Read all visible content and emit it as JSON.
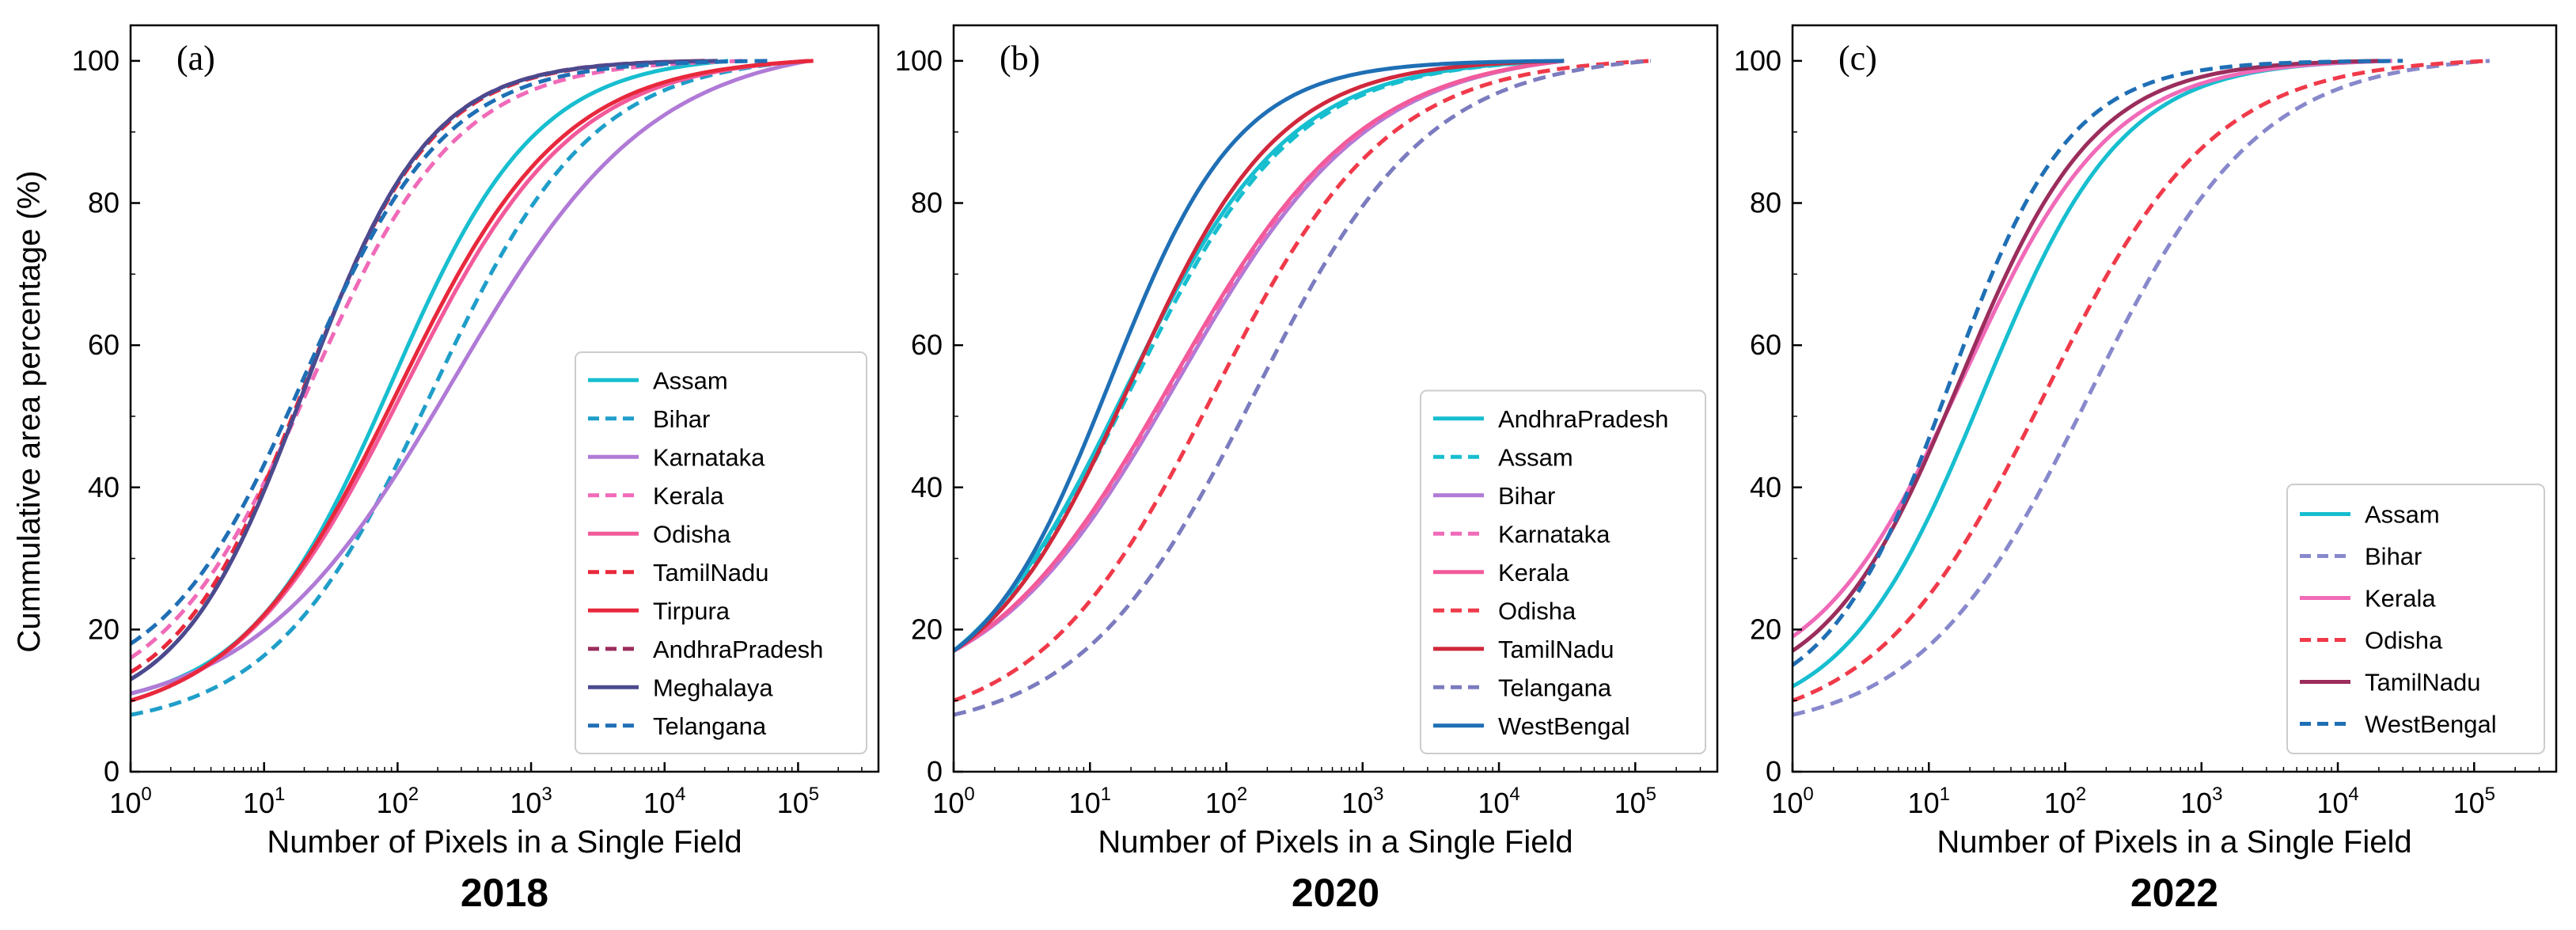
{
  "figure": {
    "ylabel": "Cummulative area percentage (%)",
    "xlabel": "Number of Pixels in a Single Field"
  },
  "chart_data": [
    {
      "type": "line",
      "panel_label": "(a)",
      "caption": "2018",
      "xlabel": "Number of Pixels in a Single Field",
      "ylabel": "Cummulative area percentage (%)",
      "x_scale": "log",
      "xlim": [
        1,
        400000
      ],
      "ylim": [
        0,
        105
      ],
      "x_ticks": [
        1,
        10,
        100,
        1000,
        10000,
        100000
      ],
      "y_ticks": [
        0,
        20,
        40,
        60,
        80,
        100
      ],
      "legend_position": "lower-right",
      "series": [
        {
          "name": "Assam",
          "color": "#17becf",
          "dash": "solid",
          "y0": 11,
          "xhalf": 90,
          "k": 0.8,
          "xmax": 30000
        },
        {
          "name": "Bihar",
          "color": "#1f9ec9",
          "dash": "dashed",
          "y0": 8,
          "xhalf": 180,
          "k": 0.72,
          "xmax": 120000
        },
        {
          "name": "Karnataka",
          "color": "#b07ad6",
          "dash": "solid",
          "y0": 11,
          "xhalf": 260,
          "k": 0.58,
          "xmax": 120000
        },
        {
          "name": "Kerala",
          "color": "#f06ab8",
          "dash": "dashed",
          "y0": 16,
          "xhalf": 22,
          "k": 0.78,
          "xmax": 40000
        },
        {
          "name": "Odisha",
          "color": "#f25a9a",
          "dash": "solid",
          "y0": 10,
          "xhalf": 110,
          "k": 0.68,
          "xmax": 120000
        },
        {
          "name": "TamilNadu",
          "color": "#e8283c",
          "dash": "dashed",
          "y0": 14,
          "xhalf": 20,
          "k": 0.9,
          "xmax": 20000
        },
        {
          "name": "Tirpura",
          "color": "#e8283c",
          "dash": "solid",
          "y0": 10,
          "xhalf": 100,
          "k": 0.7,
          "xmax": 130000
        },
        {
          "name": "AndhraPradesh",
          "color": "#9b2d5c",
          "dash": "dashed",
          "y0": 13,
          "xhalf": 20,
          "k": 0.92,
          "xmax": 20000
        },
        {
          "name": "Meghalaya",
          "color": "#4b4a8f",
          "dash": "solid",
          "y0": 13,
          "xhalf": 20,
          "k": 0.92,
          "xmax": 25000
        },
        {
          "name": "Telangana",
          "color": "#1f6fb5",
          "dash": "dashed",
          "y0": 18,
          "xhalf": 20,
          "k": 0.82,
          "xmax": 60000
        }
      ]
    },
    {
      "type": "line",
      "panel_label": "(b)",
      "caption": "2020",
      "xlabel": "Number of Pixels in a Single Field",
      "x_scale": "log",
      "xlim": [
        1,
        400000
      ],
      "ylim": [
        0,
        105
      ],
      "x_ticks": [
        1,
        10,
        100,
        1000,
        10000,
        100000
      ],
      "y_ticks": [
        0,
        20,
        40,
        60,
        80,
        100
      ],
      "legend_position": "lower-right",
      "series": [
        {
          "name": "AndhraPradesh",
          "color": "#17becf",
          "dash": "solid",
          "y0": 17,
          "xhalf": 18,
          "k": 0.72,
          "xmax": 30000
        },
        {
          "name": "Assam",
          "color": "#17becf",
          "dash": "dashed",
          "y0": 17,
          "xhalf": 20,
          "k": 0.72,
          "xmax": 30000
        },
        {
          "name": "Bihar",
          "color": "#b07ad6",
          "dash": "solid",
          "y0": 17,
          "xhalf": 45,
          "k": 0.62,
          "xmax": 30000
        },
        {
          "name": "Karnataka",
          "color": "#f06ab8",
          "dash": "dashed",
          "y0": 17,
          "xhalf": 42,
          "k": 0.62,
          "xmax": 30000
        },
        {
          "name": "Kerala",
          "color": "#f25a9a",
          "dash": "solid",
          "y0": 17,
          "xhalf": 40,
          "k": 0.62,
          "xmax": 30000
        },
        {
          "name": "Odisha",
          "color": "#f03a4a",
          "dash": "dashed",
          "y0": 10,
          "xhalf": 80,
          "k": 0.68,
          "xmax": 130000
        },
        {
          "name": "TamilNadu",
          "color": "#d0283c",
          "dash": "solid",
          "y0": 17,
          "xhalf": 20,
          "k": 0.8,
          "xmax": 30000
        },
        {
          "name": "Telangana",
          "color": "#7b7bbf",
          "dash": "dashed",
          "y0": 8,
          "xhalf": 160,
          "k": 0.68,
          "xmax": 130000
        },
        {
          "name": "WestBengal",
          "color": "#1f6fb5",
          "dash": "solid",
          "y0": 17,
          "xhalf": 14,
          "k": 0.92,
          "xmax": 30000
        }
      ]
    },
    {
      "type": "line",
      "panel_label": "(c)",
      "caption": "2022",
      "xlabel": "Number of Pixels in a Single Field",
      "x_scale": "log",
      "xlim": [
        1,
        400000
      ],
      "ylim": [
        0,
        105
      ],
      "x_ticks": [
        1,
        10,
        100,
        1000,
        10000,
        100000
      ],
      "y_ticks": [
        0,
        20,
        40,
        60,
        80,
        100
      ],
      "legend_position": "lower-right",
      "series": [
        {
          "name": "Assam",
          "color": "#17becf",
          "dash": "solid",
          "y0": 12,
          "xhalf": 25,
          "k": 0.85,
          "xmax": 25000
        },
        {
          "name": "Bihar",
          "color": "#8888cc",
          "dash": "dashed",
          "y0": 8,
          "xhalf": 150,
          "k": 0.7,
          "xmax": 130000
        },
        {
          "name": "Kerala",
          "color": "#f06ab8",
          "dash": "solid",
          "y0": 19,
          "xhalf": 18,
          "k": 0.8,
          "xmax": 25000
        },
        {
          "name": "Odisha",
          "color": "#f03a4a",
          "dash": "dashed",
          "y0": 10,
          "xhalf": 70,
          "k": 0.7,
          "xmax": 130000
        },
        {
          "name": "TamilNadu",
          "color": "#9b2d5c",
          "dash": "solid",
          "y0": 17,
          "xhalf": 17,
          "k": 0.88,
          "xmax": 20000
        },
        {
          "name": "WestBengal",
          "color": "#1f6fb5",
          "dash": "dashed",
          "y0": 15,
          "xhalf": 14,
          "k": 0.98,
          "xmax": 30000
        }
      ]
    }
  ]
}
